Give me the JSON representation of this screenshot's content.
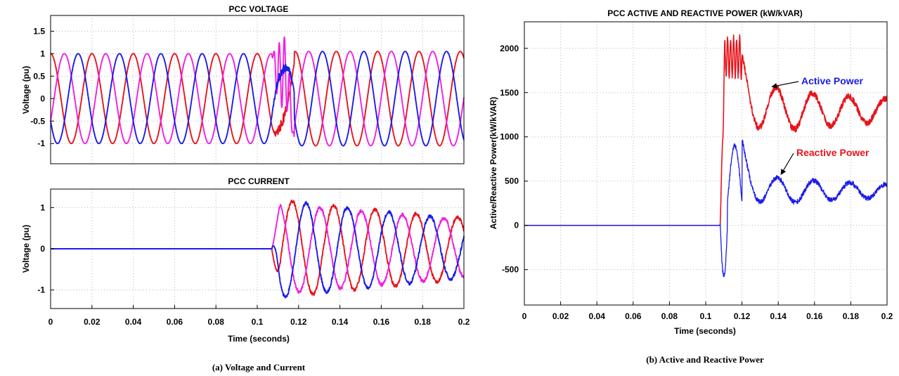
{
  "chart_data": [
    {
      "type": "line",
      "title": "PCC VOLTAGE",
      "xlabel": "",
      "ylabel": "Voltage (pu)",
      "xlim": [
        0,
        0.2
      ],
      "ylim": [
        -1.45,
        1.85
      ],
      "xticks": [
        0,
        0.02,
        0.04,
        0.06,
        0.08,
        0.1,
        0.12,
        0.14,
        0.16,
        0.18,
        0.2
      ],
      "yticks": [
        "-1",
        "-0.5",
        "0",
        "0.5",
        "1",
        "1.5"
      ],
      "yticks_values": [
        -1,
        -0.5,
        0,
        0.5,
        1,
        1.5
      ],
      "grid": true,
      "series": [
        {
          "color": "#e8141c",
          "form": "sine",
          "amplitude": 1.0,
          "frequency_hz": 50,
          "phase_deg": 90
        },
        {
          "color": "#f020e0",
          "form": "sine",
          "amplitude": 1.0,
          "frequency_hz": 50,
          "phase_deg": -30
        },
        {
          "color": "#1c1ce8",
          "form": "sine",
          "amplitude": 1.0,
          "frequency_hz": 50,
          "phase_deg": 210
        }
      ],
      "disturbance": {
        "start": 0.107,
        "end": 0.118,
        "peak": 1.4
      }
    },
    {
      "type": "line",
      "title": "PCC CURRENT",
      "xlabel": "Time (seconds)",
      "ylabel": "Voltage (pu)",
      "xlim": [
        0,
        0.2
      ],
      "ylim": [
        -1.45,
        1.45
      ],
      "xticks": [
        0,
        0.02,
        0.04,
        0.06,
        0.08,
        0.1,
        0.12,
        0.14,
        0.16,
        0.18,
        0.2
      ],
      "xticklabels": [
        "0",
        "0.02",
        "0.04",
        "0.06",
        "0.08",
        "0.1",
        "0.12",
        "0.14",
        "0.16",
        "0.18",
        "0.2"
      ],
      "yticks": [
        "-1",
        "0",
        "1"
      ],
      "yticks_values": [
        -1,
        0,
        1
      ],
      "grid": true,
      "onset": 0.107,
      "series": [
        {
          "color": "#e8141c",
          "pre_onset": 0,
          "amplitude_start": 1.2,
          "amplitude_end": 0.75
        },
        {
          "color": "#f020e0",
          "pre_onset": 0,
          "amplitude_start": 1.1,
          "amplitude_end": 0.7
        },
        {
          "color": "#1c1ce8",
          "pre_onset": 0,
          "amplitude_start": 1.2,
          "amplitude_end": 0.7
        }
      ]
    },
    {
      "type": "line",
      "title": "PCC ACTIVE AND REACTIVE  POWER  (kW/kVAR)",
      "xlabel": "Time (seconds)",
      "ylabel": "Active/Reactive Power(kW/kVAR)",
      "xlim": [
        0,
        0.2
      ],
      "ylim": [
        -900,
        2300
      ],
      "xticks": [
        0,
        0.02,
        0.04,
        0.06,
        0.08,
        0.1,
        0.12,
        0.14,
        0.16,
        0.18,
        0.2
      ],
      "xticklabels": [
        "0",
        "0.02",
        "0.04",
        "0.06",
        "0.08",
        "0.1",
        "0.12",
        "0.14",
        "0.16",
        "0.18",
        "0.2"
      ],
      "yticks": [
        "-500",
        "0",
        "500",
        "1000",
        "1500",
        "2000"
      ],
      "yticks_values": [
        -500,
        0,
        500,
        1000,
        1500,
        2000
      ],
      "grid": true,
      "onset": 0.108,
      "series": [
        {
          "name": "Active Power",
          "color": "#e8141c",
          "pre_onset": 0,
          "peak": 2050,
          "settle": 1300,
          "oscillation_start": 300,
          "oscillation_period": 0.02
        },
        {
          "name": "Reactive Power",
          "color": "#1c1ce8",
          "pre_onset": 0,
          "peak": 950,
          "trough": -580,
          "settle": 390,
          "oscillation_start": 180,
          "oscillation_period": 0.02
        }
      ],
      "annotations": [
        {
          "text": "Active Power",
          "color": "#1c1ce8",
          "points_to": [
            0.135,
            1550
          ]
        },
        {
          "text": "Reactive Power",
          "color": "#e8141c",
          "points_to": [
            0.14,
            560
          ]
        }
      ]
    }
  ],
  "captions": {
    "left": "(a) Voltage and Current",
    "right": "(b) Active and Reactive Power"
  }
}
